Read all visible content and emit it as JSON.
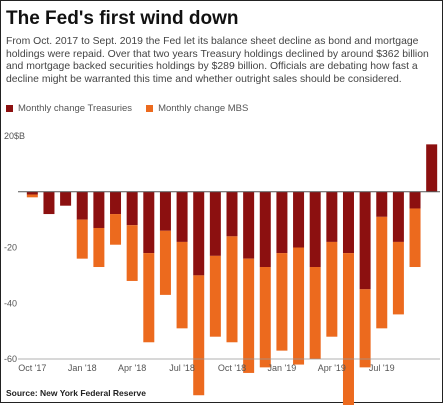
{
  "title": "The Fed's first wind down",
  "subtitle": "From Oct. 2017 to Sept. 2019 the Fed let its balance sheet decline as bond and mortgage holdings were repaid. Over that two years Treasury holdings declined by around $362 billion and mortgage backed securities holdings by $289 billion. Officials are debating how fast a decline might be warranted this time and whether outright sales should be considered.",
  "source": "Source: New York Federal Reserve",
  "colors": {
    "treasuries": "#8c1010",
    "mbs": "#ec6a1e",
    "zero_line": "#555555",
    "grid": "#dddddd"
  },
  "chart_data": {
    "type": "bar",
    "legend_position": "top-left",
    "grid": false,
    "ylim": [
      -60,
      20
    ],
    "y_ticks": [
      {
        "value": 20,
        "label": "20$B"
      },
      {
        "value": -20,
        "label": "-20"
      },
      {
        "value": -40,
        "label": "-40"
      },
      {
        "value": -60,
        "label": "-60"
      }
    ],
    "x_tick_labels": [
      "Oct '17",
      "Jan '18",
      "Apr '18",
      "Jul '18",
      "Oct '18",
      "Jan '19",
      "Apr '19",
      "Jul '19"
    ],
    "categories": [
      "Oct '17",
      "Nov '17",
      "Dec '17",
      "Jan '18",
      "Feb '18",
      "Mar '18",
      "Apr '18",
      "May '18",
      "Jun '18",
      "Jul '18",
      "Aug '18",
      "Sep '18",
      "Oct '18",
      "Nov '18",
      "Dec '18",
      "Jan '19",
      "Feb '19",
      "Mar '19",
      "Apr '19",
      "May '19",
      "Jun '19",
      "Jul '19",
      "Aug '19",
      "Sep '19",
      "Oct '19"
    ],
    "series": [
      {
        "name": "Monthly change Treasuries",
        "color_key": "treasuries",
        "values": [
          -1,
          -8,
          -5,
          -10,
          -13,
          -8,
          -12,
          -22,
          -14,
          -18,
          -30,
          -23,
          -16,
          -24,
          -27,
          -22,
          -20,
          -27,
          -18,
          -22,
          -35,
          -9,
          -18,
          -6,
          17
        ]
      },
      {
        "name": "Monthly change MBS",
        "color_key": "mbs",
        "values": [
          -1,
          0,
          0,
          -14,
          -14,
          -11,
          -20,
          -32,
          -23,
          -31,
          -43,
          -29,
          -38,
          -41,
          -36,
          -35,
          -42,
          -33,
          -34,
          -55,
          -28,
          -40,
          -26,
          -21,
          0
        ]
      }
    ]
  }
}
